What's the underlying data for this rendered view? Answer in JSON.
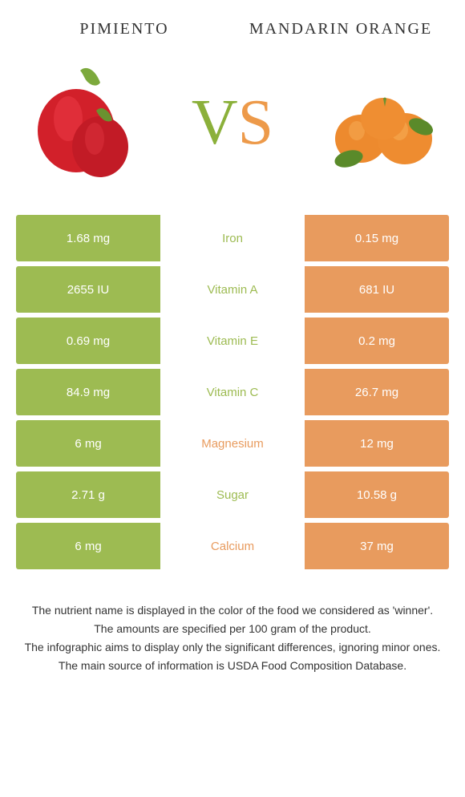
{
  "foods": {
    "left": {
      "title": "PIMIENTO",
      "color": "#9dbb52"
    },
    "right": {
      "title": "MANDARIN ORANGE",
      "color": "#e89b5e"
    }
  },
  "vs_label": {
    "v": "V",
    "s": "S",
    "v_color": "#8bb03a",
    "s_color": "#ed9a4a"
  },
  "rows": [
    {
      "left": "1.68 mg",
      "nutrient": "Iron",
      "right": "0.15 mg",
      "winner": "left"
    },
    {
      "left": "2655 IU",
      "nutrient": "Vitamin A",
      "right": "681 IU",
      "winner": "left"
    },
    {
      "left": "0.69 mg",
      "nutrient": "Vitamin E",
      "right": "0.2 mg",
      "winner": "left"
    },
    {
      "left": "84.9 mg",
      "nutrient": "Vitamin C",
      "right": "26.7 mg",
      "winner": "left"
    },
    {
      "left": "6 mg",
      "nutrient": "Magnesium",
      "right": "12 mg",
      "winner": "right"
    },
    {
      "left": "2.71 g",
      "nutrient": "Sugar",
      "right": "10.58 g",
      "winner": "left"
    },
    {
      "left": "6 mg",
      "nutrient": "Calcium",
      "right": "37 mg",
      "winner": "right"
    }
  ],
  "footer": {
    "line1": "The nutrient name is displayed in the color of the food we considered as 'winner'.",
    "line2": "The amounts are specified per 100 gram of the product.",
    "line3": "The infographic aims to display only the significant differences, ignoring minor ones.",
    "line4": "The main source of information is USDA Food Composition Database."
  }
}
